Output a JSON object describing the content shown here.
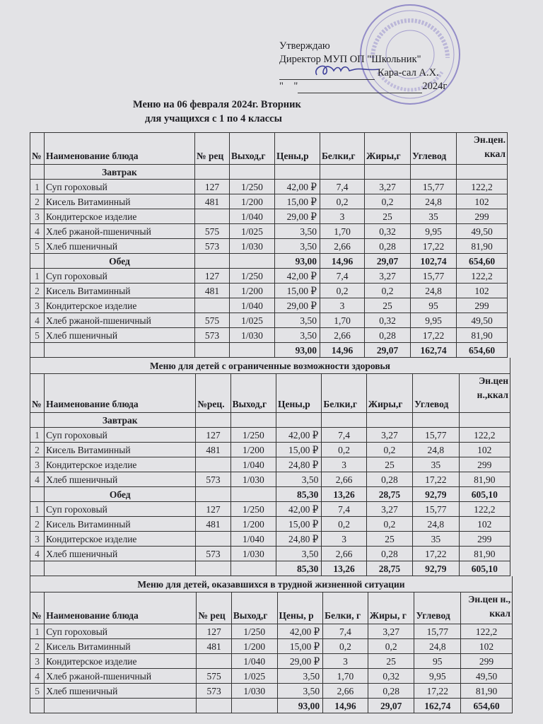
{
  "approval": {
    "line1": "Утверждаю",
    "line2": "Директор МУП ОП \"Школьник\"",
    "signer": "Кара-сал А.Х.",
    "date_prefix": "\"    \"",
    "date_year": "2024г"
  },
  "stamp": {
    "text": "РЕСПУБЛИКА ТЫВА • МУП ОП «Школьник» • РОССИЙСКАЯ ФЕДЕРАЦИЯ",
    "center": "МУП ОП Школьник Кызыл",
    "color": "#6a5fb0"
  },
  "document": {
    "title": "Меню на 06 февраля 2024г. Вторник",
    "subtitle": "для учащихся с 1 по 4 классы"
  },
  "tables": [
    {
      "title": "",
      "headers": [
        "№",
        "Наименование блюда",
        "№ рец",
        "Выход,г",
        "Цены,р",
        "Белки,г",
        "Жиры,г",
        "Углевод",
        "Эн.цен. ккал"
      ],
      "rows": [
        {
          "kind": "section",
          "cells": [
            "",
            "Завтрак",
            "",
            "",
            "",
            "",
            "",
            "",
            ""
          ]
        },
        {
          "kind": "item",
          "cells": [
            "1",
            "Суп гороховый",
            "127",
            "1/250",
            "42,00 ₽",
            "7,4",
            "3,27",
            "15,77",
            "122,2"
          ]
        },
        {
          "kind": "item",
          "cells": [
            "2",
            "Кисель Витаминный",
            "481",
            "1/200",
            "15,00 ₽",
            "0,2",
            "0,2",
            "24,8",
            "102"
          ]
        },
        {
          "kind": "item",
          "cells": [
            "3",
            "Кондитерское изделие",
            "",
            "1/040",
            "29,00 ₽",
            "3",
            "25",
            "35",
            "299"
          ]
        },
        {
          "kind": "item",
          "cells": [
            "4",
            "Хлеб ржаной-пшеничный",
            "575",
            "1/025",
            "3,50",
            "1,70",
            "0,32",
            "9,95",
            "49,50"
          ]
        },
        {
          "kind": "item",
          "cells": [
            "5",
            "Хлеб пшеничный",
            "573",
            "1/030",
            "3,50",
            "2,66",
            "0,28",
            "17,22",
            "81,90"
          ]
        },
        {
          "kind": "section-total",
          "cells": [
            "",
            "Обед",
            "",
            "",
            "93,00",
            "14,96",
            "29,07",
            "102,74",
            "654,60"
          ]
        },
        {
          "kind": "item",
          "cells": [
            "1",
            "Суп гороховый",
            "127",
            "1/250",
            "42,00 ₽",
            "7,4",
            "3,27",
            "15,77",
            "122,2"
          ]
        },
        {
          "kind": "item",
          "cells": [
            "2",
            "Кисель Витаминный",
            "481",
            "1/200",
            "15,00 ₽",
            "0,2",
            "0,2",
            "24,8",
            "102"
          ]
        },
        {
          "kind": "item",
          "cells": [
            "3",
            "Кондитерское изделие",
            "",
            "1/040",
            "29,00 ₽",
            "3",
            "25",
            "95",
            "299"
          ]
        },
        {
          "kind": "item",
          "cells": [
            "4",
            "Хлеб ржаной-пшеничный",
            "575",
            "1/025",
            "3,50",
            "1,70",
            "0,32",
            "9,95",
            "49,50"
          ]
        },
        {
          "kind": "item",
          "cells": [
            "5",
            "Хлеб пшеничный",
            "573",
            "1/030",
            "3,50",
            "2,66",
            "0,28",
            "17,22",
            "81,90"
          ]
        },
        {
          "kind": "total",
          "cells": [
            "",
            "",
            "",
            "",
            "93,00",
            "14,96",
            "29,07",
            "162,74",
            "654,60"
          ]
        }
      ]
    },
    {
      "title": "Меню для детей с ограниченные возможности здоровья",
      "headers": [
        "№",
        "Наименование блюда",
        "№рец.",
        "Выход,г",
        "Цены,р",
        "Белки,г",
        "Жиры,г",
        "Углевод",
        "Эн.цен н.,ккал"
      ],
      "rows": [
        {
          "kind": "section",
          "cells": [
            "",
            "Завтрак",
            "",
            "",
            "",
            "",
            "",
            "",
            ""
          ]
        },
        {
          "kind": "item",
          "cells": [
            "1",
            "Суп гороховый",
            "127",
            "1/250",
            "42,00 ₽",
            "7,4",
            "3,27",
            "15,77",
            "122,2"
          ]
        },
        {
          "kind": "item",
          "cells": [
            "2",
            "Кисель Витаминный",
            "481",
            "1/200",
            "15,00 ₽",
            "0,2",
            "0,2",
            "24,8",
            "102"
          ]
        },
        {
          "kind": "item",
          "cells": [
            "3",
            "Кондитерское изделие",
            "",
            "1/040",
            "24,80 ₽",
            "3",
            "25",
            "35",
            "299"
          ]
        },
        {
          "kind": "item",
          "cells": [
            "4",
            "Хлеб пшеничный",
            "573",
            "1/030",
            "3,50",
            "2,66",
            "0,28",
            "17,22",
            "81,90"
          ]
        },
        {
          "kind": "section-total",
          "cells": [
            "",
            "Обед",
            "",
            "",
            "85,30",
            "13,26",
            "28,75",
            "92,79",
            "605,10"
          ]
        },
        {
          "kind": "item",
          "cells": [
            "1",
            "Суп гороховый",
            "127",
            "1/250",
            "42,00 ₽",
            "7,4",
            "3,27",
            "15,77",
            "122,2"
          ]
        },
        {
          "kind": "item",
          "cells": [
            "2",
            "Кисель Витаминный",
            "481",
            "1/200",
            "15,00 ₽",
            "0,2",
            "0,2",
            "24,8",
            "102"
          ]
        },
        {
          "kind": "item",
          "cells": [
            "3",
            "Кондитерское изделие",
            "",
            "1/040",
            "24,80 ₽",
            "3",
            "25",
            "35",
            "299"
          ]
        },
        {
          "kind": "item",
          "cells": [
            "4",
            "Хлеб пшеничный",
            "573",
            "1/030",
            "3,50",
            "2,66",
            "0,28",
            "17,22",
            "81,90"
          ]
        },
        {
          "kind": "total",
          "cells": [
            "",
            "",
            "",
            "",
            "85,30",
            "13,26",
            "28,75",
            "92,79",
            "605,10"
          ]
        }
      ]
    },
    {
      "title": "Меню для детей, оказавшихся в трудной жизненной ситуации",
      "headers": [
        "№",
        "Наименование блюда",
        "№ рец",
        "Выход,г",
        "Цены, р",
        "Белки, г",
        "Жиры, г",
        "Углевод",
        "Эн.цен н., ккал"
      ],
      "rows": [
        {
          "kind": "item",
          "cells": [
            "1",
            "Суп гороховый",
            "127",
            "1/250",
            "42,00 ₽",
            "7,4",
            "3,27",
            "15,77",
            "122,2"
          ]
        },
        {
          "kind": "item",
          "cells": [
            "2",
            "Кисель Витаминный",
            "481",
            "1/200",
            "15,00 ₽",
            "0,2",
            "0,2",
            "24,8",
            "102"
          ]
        },
        {
          "kind": "item",
          "cells": [
            "3",
            "Кондитерское изделие",
            "",
            "1/040",
            "29,00 ₽",
            "3",
            "25",
            "95",
            "299"
          ]
        },
        {
          "kind": "item",
          "cells": [
            "4",
            "Хлеб ржаной-пшеничный",
            "575",
            "1/025",
            "3,50",
            "1,70",
            "0,32",
            "9,95",
            "49,50"
          ]
        },
        {
          "kind": "item",
          "cells": [
            "5",
            "Хлеб пшеничный",
            "573",
            "1/030",
            "3,50",
            "2,66",
            "0,28",
            "17,22",
            "81,90"
          ]
        },
        {
          "kind": "total",
          "cells": [
            "",
            "",
            "",
            "",
            "93,00",
            "14,96",
            "29,07",
            "162,74",
            "654,60"
          ]
        }
      ]
    }
  ]
}
